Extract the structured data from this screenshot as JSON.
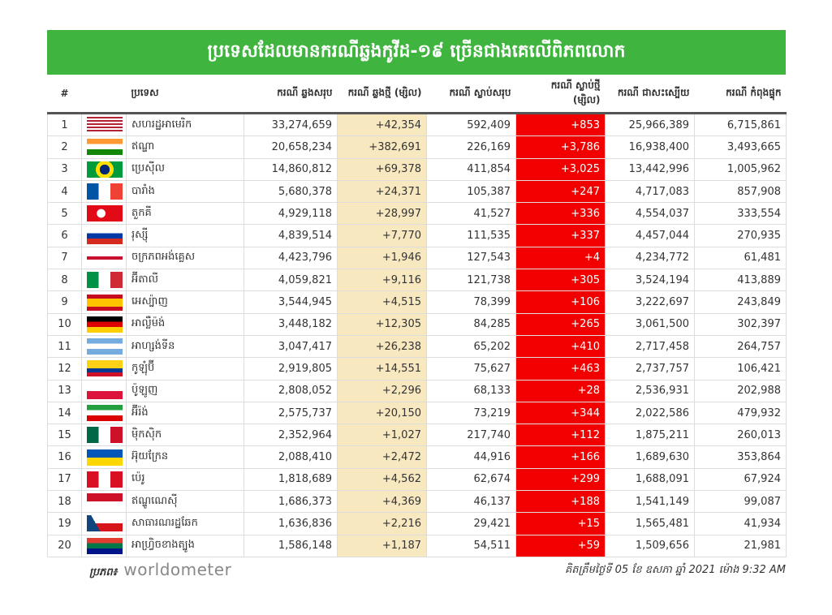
{
  "title": "ប្រទេសដែលមានករណីឆ្លងកូវីដ-១៩ ច្រើនជាងគេលើពិភពលោក",
  "header": [
    "#",
    "ប្រទេស",
    "ករណី ឆ្លងសរុប",
    "ករណី ឆ្លងថ្មី (ម្សិល)",
    "ករណី ស្លាប់សរុប",
    "ករណី ស្លាប់ថ្មី (ម្សិល)",
    "ករណី ជាសះស្បើយ",
    "ករណី កំពុងផ្ទុក"
  ],
  "rows": [
    [
      "1",
      "សហរដ្ឋអាមេរិក",
      "33,274,659",
      "+42,354",
      "592,409",
      "+853",
      "25,966,389",
      "6,715,861"
    ],
    [
      "2",
      "ឥណ្ឌា",
      "20,658,234",
      "+382,691",
      "226,169",
      "+3,786",
      "16,938,400",
      "3,493,665"
    ],
    [
      "3",
      "ប្រេស៊ីល",
      "14,860,812",
      "+69,378",
      "411,854",
      "+3,025",
      "13,442,996",
      "1,005,962"
    ],
    [
      "4",
      "បារាំង",
      "5,680,378",
      "+24,371",
      "105,387",
      "+247",
      "4,717,083",
      "857,908"
    ],
    [
      "5",
      "តួកគី",
      "4,929,118",
      "+28,997",
      "41,527",
      "+336",
      "4,554,037",
      "333,554"
    ],
    [
      "6",
      "រុស្ស៊ី",
      "4,839,514",
      "+7,770",
      "111,535",
      "+337",
      "4,457,044",
      "270,935"
    ],
    [
      "7",
      "ចក្រភពអង់គ្លេស",
      "4,423,796",
      "+1,946",
      "127,543",
      "+4",
      "4,234,772",
      "61,481"
    ],
    [
      "8",
      "អ៊ីតាលី",
      "4,059,821",
      "+9,116",
      "121,738",
      "+305",
      "3,524,194",
      "413,889"
    ],
    [
      "9",
      "អេស្ប៉ាញ",
      "3,544,945",
      "+4,515",
      "78,399",
      "+106",
      "3,222,697",
      "243,849"
    ],
    [
      "10",
      "អាល្លឺម៉ង់",
      "3,448,182",
      "+12,305",
      "84,285",
      "+265",
      "3,061,500",
      "302,397"
    ],
    [
      "11",
      "អាហ្សង់ទីន",
      "3,047,417",
      "+26,238",
      "65,202",
      "+410",
      "2,717,458",
      "264,757"
    ],
    [
      "12",
      "កូឡុំប៊ី",
      "2,919,805",
      "+14,551",
      "75,627",
      "+463",
      "2,737,757",
      "106,421"
    ],
    [
      "13",
      "ប៉ូឡូញ",
      "2,808,052",
      "+2,296",
      "68,133",
      "+28",
      "2,536,931",
      "202,988"
    ],
    [
      "14",
      "អ៊ីរ៉ង់",
      "2,575,737",
      "+20,150",
      "73,219",
      "+344",
      "2,022,586",
      "479,932"
    ],
    [
      "15",
      "ម៉ិកស៊ិក",
      "2,352,964",
      "+1,027",
      "217,740",
      "+112",
      "1,875,211",
      "260,013"
    ],
    [
      "16",
      "អ៊ុយក្រែន",
      "2,088,410",
      "+2,472",
      "44,916",
      "+166",
      "1,689,630",
      "353,864"
    ],
    [
      "17",
      "ប៉េរូ",
      "1,818,689",
      "+4,562",
      "62,674",
      "+299",
      "1,688,091",
      "67,924"
    ],
    [
      "18",
      "ឥណ្ឌូណេស៊ី",
      "1,686,373",
      "+4,369",
      "46,137",
      "+188",
      "1,541,149",
      "99,087"
    ],
    [
      "19",
      "សាធារណរដ្ឋឆែក",
      "1,636,836",
      "+2,216",
      "29,421",
      "+15",
      "1,565,481",
      "41,934"
    ],
    [
      "20",
      "អាហ្វ្រិចខាងត្បូង",
      "1,586,148",
      "+1,187",
      "54,511",
      "+59",
      "1,509,656",
      "21,981"
    ]
  ],
  "footer": {
    "source_label": "ប្រភព៖",
    "source": "worldometer",
    "date": "គិតត្រឹមថ្ងៃទី 05 ខែ ឧសភា ឆ្នាំ 2021 ម៉ោង 9:32 AM"
  }
}
